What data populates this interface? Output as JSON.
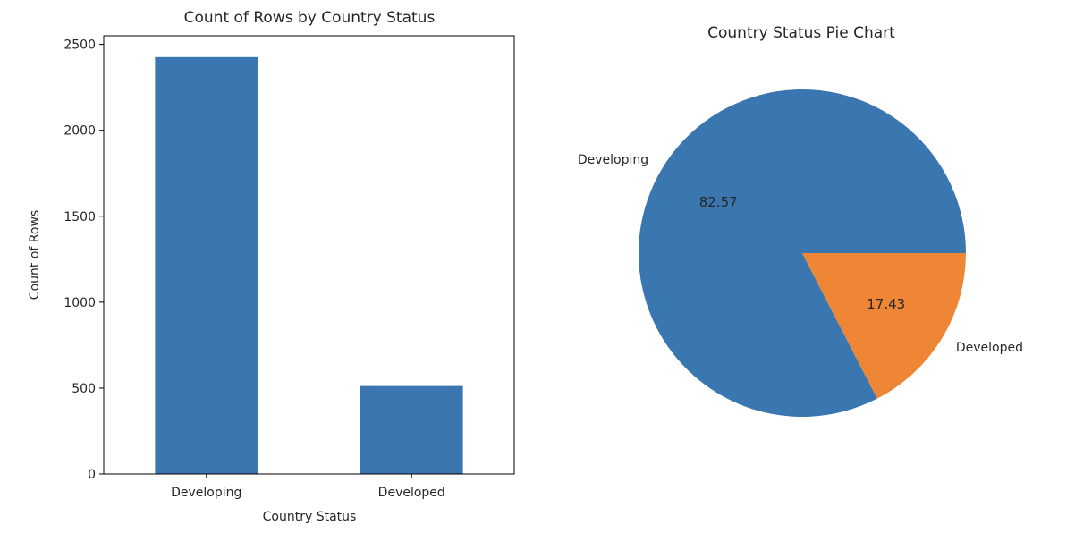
{
  "chart_data": [
    {
      "type": "bar",
      "title": "Count of Rows by Country Status",
      "xlabel": "Country Status",
      "ylabel": "Count of Rows",
      "categories": [
        "Developing",
        "Developed"
      ],
      "values": [
        2426,
        512
      ],
      "ylim": [
        0,
        2550
      ],
      "yticks": [
        0,
        500,
        1000,
        1500,
        2000,
        2500
      ],
      "color": "#3a76af",
      "grid": false
    },
    {
      "type": "pie",
      "title": "Country Status Pie Chart",
      "labels": [
        "Developing",
        "Developed"
      ],
      "values": [
        82.57,
        17.43
      ],
      "pct_labels": [
        "82.57",
        "17.43"
      ],
      "colors": [
        "#3a76af",
        "#ef8636"
      ]
    }
  ]
}
